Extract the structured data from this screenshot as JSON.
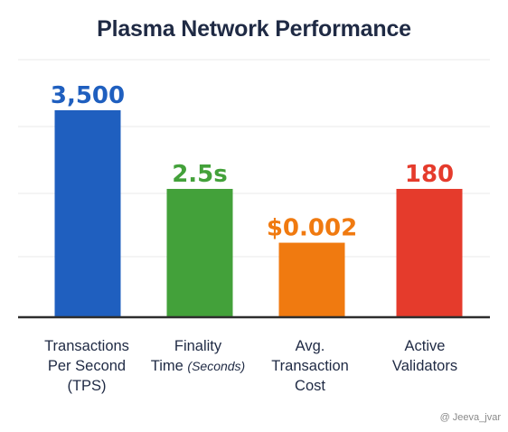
{
  "chart_data": {
    "type": "bar",
    "title": "Plasma Network Performance",
    "categories": [
      {
        "line1": "Transactions",
        "line2": "Per Second",
        "line3": "(TPS)",
        "sub": ""
      },
      {
        "line1": "Finality",
        "line2": "Time ",
        "line3": "",
        "sub": "(Seconds)"
      },
      {
        "line1": "Avg.",
        "line2": "Transaction",
        "line3": "Cost",
        "sub": ""
      },
      {
        "line1": "Active",
        "line2": "Validators",
        "line3": "",
        "sub": ""
      }
    ],
    "data_labels": [
      "3,500",
      "2.5s",
      "$0.002",
      "180"
    ],
    "relative_heights": [
      1.0,
      0.62,
      0.36,
      0.62
    ],
    "colors": [
      "#1f5fbf",
      "#43a13a",
      "#f07a10",
      "#e53b2c"
    ],
    "grid": true,
    "ylim": [
      0,
      1
    ],
    "legend": "none"
  },
  "watermark": "@ Jeeva_jvar"
}
